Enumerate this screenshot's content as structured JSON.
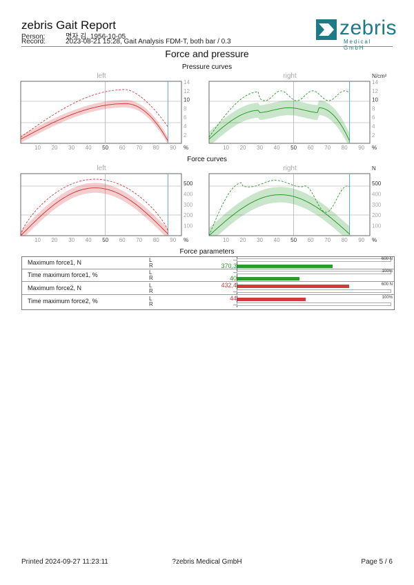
{
  "header": {
    "title": "zebris Gait Report",
    "person_label": "Person:",
    "person_value": "명자 김, 1956-10-05",
    "record_label": "Record:",
    "record_value": "2023-08-21 15:28, Gait Analysis FDM-T, both bar / 0.3",
    "logo_text": "zebris",
    "logo_sub": "Medical GmbH"
  },
  "section_title": "Force and pressure",
  "pressure": {
    "title": "Pressure curves",
    "left_label": "left",
    "right_label": "right",
    "unit": "N/cm²",
    "yticks": [
      "14",
      "12",
      "10",
      "8",
      "6",
      "4",
      "2"
    ],
    "xticks": [
      "10",
      "20",
      "30",
      "40",
      "50",
      "60",
      "70",
      "80",
      "90"
    ],
    "xunit": "%"
  },
  "force": {
    "title": "Force curves",
    "left_label": "left",
    "right_label": "right",
    "unit": "N",
    "yticks": [
      "500",
      "400",
      "300",
      "200",
      "100"
    ],
    "xticks": [
      "10",
      "20",
      "30",
      "40",
      "50",
      "60",
      "70",
      "80",
      "90"
    ],
    "xunit": "%"
  },
  "params": {
    "title": "Force parameters",
    "rows": [
      {
        "label": "Maximum force1, N",
        "L": "–",
        "R": "370,3",
        "fraction": 0.617,
        "side": "R",
        "scale": "600 N"
      },
      {
        "label": "Time maximum force1, %",
        "L": "–",
        "R": "40",
        "fraction": 0.4,
        "side": "R",
        "scale": "100%"
      },
      {
        "label": "Maximum force2, N",
        "L": "432,4",
        "R": "–",
        "fraction": 0.721,
        "side": "L",
        "scale": "600 N"
      },
      {
        "label": "Time maximum force2, %",
        "L": "44",
        "R": "–",
        "fraction": 0.44,
        "side": "L",
        "scale": "100%"
      }
    ],
    "L_letter": "L",
    "R_letter": "R"
  },
  "colors": {
    "left": "#d23b3b",
    "right": "#2a9a2a",
    "accent": "#1f7a86"
  },
  "footer": {
    "printed": "Printed  2024-09-27 11:23:11",
    "company": "?zebris Medical GmbH",
    "page": "Page  5 / 6"
  }
}
